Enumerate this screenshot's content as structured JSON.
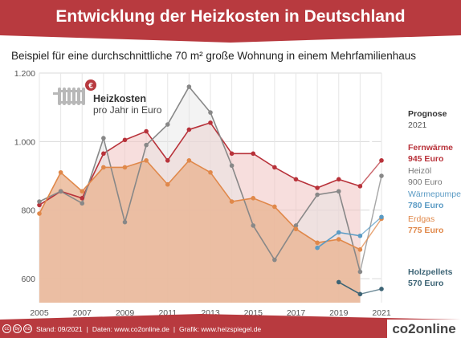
{
  "header": {
    "title": "Entwicklung der Heizkosten in Deutschland"
  },
  "subtitle": "Beispiel für eine durchschnittliche 70 m² große Wohnung in einem Mehrfamilienhaus",
  "legend_box": {
    "title": "Heizkosten",
    "subtitle": "pro Jahr in Euro",
    "badge": "€"
  },
  "side_labels": {
    "prognose_title": "Prognose",
    "prognose_year": "2021",
    "fernwaerme_name": "Fernwärme",
    "fernwaerme_value": "945 Euro",
    "heizoel_name": "Heizöl",
    "heizoel_value": "900 Euro",
    "waermepumpe_name": "Wärmepumpe",
    "waermepumpe_value": "780 Euro",
    "erdgas_name": "Erdgas",
    "erdgas_value": "775 Euro",
    "holzpellets_name": "Holzpellets",
    "holzpellets_value": "570 Euro"
  },
  "footer": {
    "cc_icons": [
      "cc",
      "by",
      "nd"
    ],
    "stand": "Stand: 09/2021",
    "sep1": "|",
    "daten": "Daten: www.co2online.de",
    "sep2": "|",
    "grafik": "Grafik: www.heizspiegel.de",
    "brand": "co2online"
  },
  "colors": {
    "header": "#b83a3f",
    "fernwaerme": "#b8323a",
    "heizoel": "#888888",
    "erdgas": "#e0884a",
    "waermepumpe": "#5b9bc4",
    "holzpellets": "#3d6475"
  },
  "chart_data": {
    "type": "line",
    "x": [
      2005,
      2006,
      2007,
      2008,
      2009,
      2010,
      2011,
      2012,
      2013,
      2014,
      2015,
      2016,
      2017,
      2018,
      2019,
      2020,
      2021
    ],
    "xticks": [
      "2005",
      "2007",
      "2009",
      "2011",
      "2013",
      "2015",
      "2017",
      "2019",
      "2021"
    ],
    "yticks": [
      "600",
      "800",
      "1.000",
      "1.200"
    ],
    "ylim": [
      530,
      1200
    ],
    "grid": true,
    "series": [
      {
        "name": "Fernwärme",
        "color": "#b8323a",
        "x": [
          2005,
          2006,
          2007,
          2008,
          2009,
          2010,
          2011,
          2012,
          2013,
          2014,
          2015,
          2016,
          2017,
          2018,
          2019,
          2020,
          2021
        ],
        "values": [
          815,
          855,
          835,
          965,
          1005,
          1030,
          945,
          1035,
          1055,
          965,
          965,
          925,
          890,
          865,
          890,
          870,
          945
        ]
      },
      {
        "name": "Heizöl",
        "color": "#888888",
        "x": [
          2005,
          2006,
          2007,
          2008,
          2009,
          2010,
          2011,
          2012,
          2013,
          2014,
          2015,
          2016,
          2017,
          2018,
          2019,
          2020,
          2021
        ],
        "values": [
          825,
          855,
          820,
          1010,
          765,
          990,
          1050,
          1160,
          1085,
          930,
          755,
          655,
          755,
          845,
          855,
          620,
          900
        ]
      },
      {
        "name": "Erdgas",
        "color": "#e0884a",
        "x": [
          2005,
          2006,
          2007,
          2008,
          2009,
          2010,
          2011,
          2012,
          2013,
          2014,
          2015,
          2016,
          2017,
          2018,
          2019,
          2020,
          2021
        ],
        "values": [
          790,
          910,
          855,
          925,
          925,
          945,
          875,
          945,
          910,
          825,
          835,
          810,
          745,
          705,
          715,
          685,
          775
        ]
      },
      {
        "name": "Wärmepumpe",
        "color": "#5b9bc4",
        "x": [
          2018,
          2019,
          2020,
          2021
        ],
        "values": [
          690,
          735,
          725,
          780
        ]
      },
      {
        "name": "Holzpellets",
        "color": "#3d6475",
        "x": [
          2019,
          2020,
          2021
        ],
        "values": [
          590,
          555,
          570
        ]
      }
    ]
  }
}
